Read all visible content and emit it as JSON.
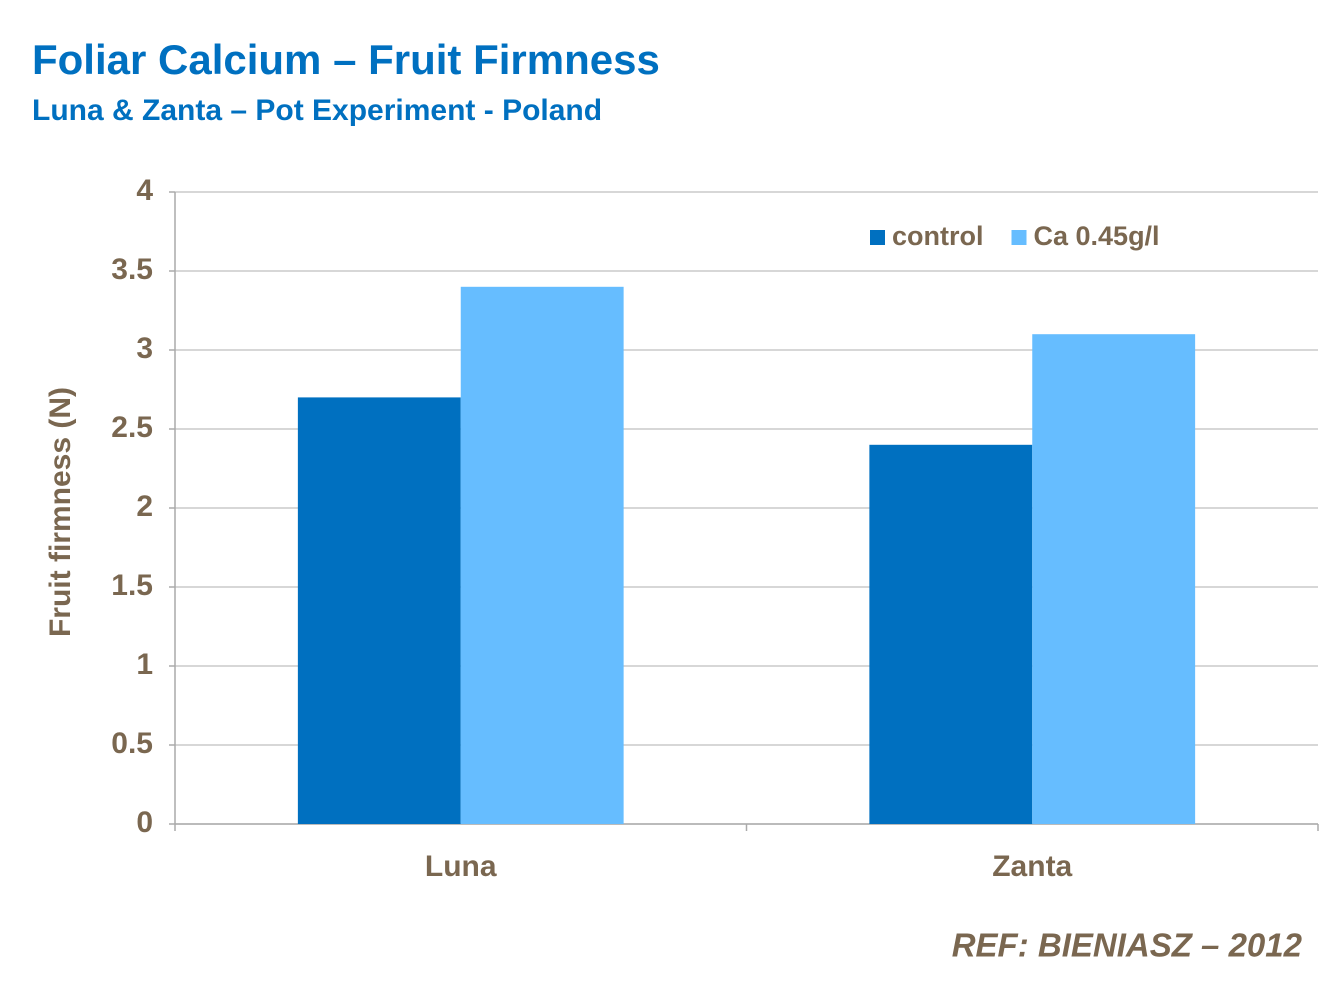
{
  "chart_data": {
    "type": "bar",
    "title": "Foliar Calcium – Fruit Firmness",
    "subtitle": "Luna & Zanta – Pot Experiment - Poland",
    "y_label": "Fruit firmness (N)",
    "annotation": "REF: BIENIASZ – 2012",
    "categories": [
      "Luna",
      "Zanta"
    ],
    "series": [
      {
        "name": "control",
        "color": "#0070c0",
        "values": [
          2.7,
          2.4
        ]
      },
      {
        "name": "Ca 0.45g/l",
        "color": "#66bdff",
        "values": [
          3.4,
          3.1
        ]
      }
    ],
    "ylim": [
      0,
      4
    ],
    "yticks": [
      0,
      0.5,
      1,
      1.5,
      2,
      2.5,
      3,
      3.5,
      4
    ],
    "grid": true,
    "legend": "top-right"
  }
}
